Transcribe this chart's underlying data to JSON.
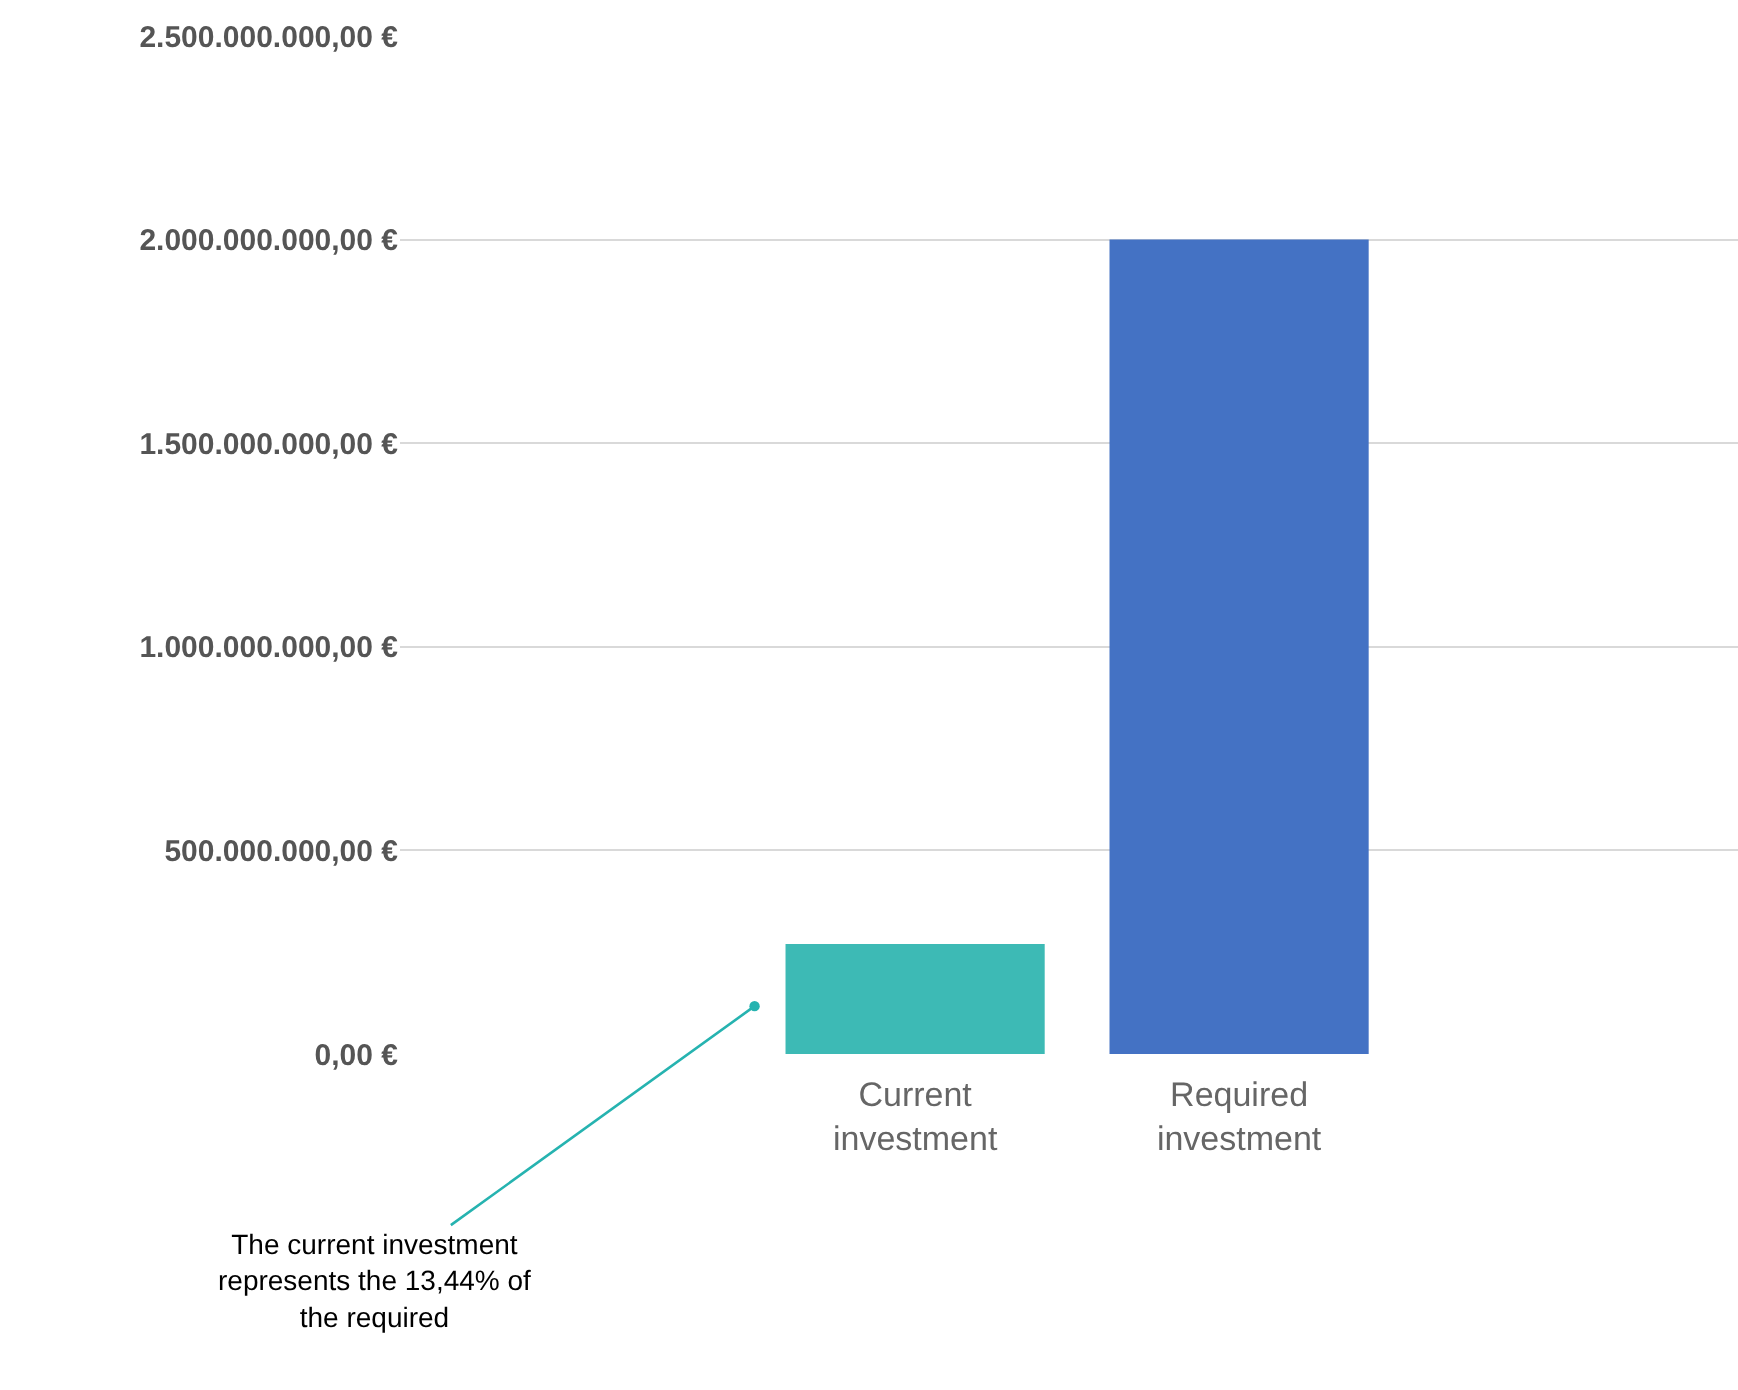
{
  "chart_data": {
    "type": "bar",
    "categories": [
      "Current investment",
      "Required investment"
    ],
    "values": [
      270000000,
      2000000000
    ],
    "colors": [
      "#3dbab5",
      "#4472c4"
    ],
    "ylim": [
      0,
      2500000000
    ],
    "yticks": [
      {
        "value": 0,
        "label": "0,00 €"
      },
      {
        "value": 500000000,
        "label": "500.000.000,00 €"
      },
      {
        "value": 1000000000,
        "label": "1.000.000.000,00 €"
      },
      {
        "value": 1500000000,
        "label": "1.500.000.000,00 €"
      },
      {
        "value": 2000000000,
        "label": "2.000.000.000,00 €"
      },
      {
        "value": 2500000000,
        "label": "2.500.000.000,00 €"
      }
    ],
    "grid": "y",
    "annotations": [
      "The current investment represents the 13,44% of the required"
    ]
  }
}
